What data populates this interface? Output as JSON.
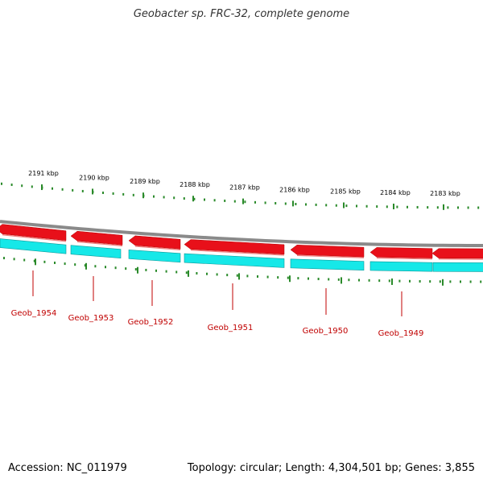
{
  "title": "Geobacter sp. FRC-32, complete genome",
  "footer": {
    "accession": "Accession: NC_011979",
    "summary": "Topology: circular; Length: 4,304,501 bp; Genes: 3,855"
  },
  "colors": {
    "backbone": "#8a8a8a",
    "forward_gene": "#e8101a",
    "reverse_gene": "#16e8e8",
    "ticks": "#2a8a2a",
    "gene_label": "#c00000"
  },
  "scale": {
    "unit": "kbp",
    "start_kbp": 2183,
    "end_kbp": 2191
  },
  "kbp_labels": [
    "2191 kbp",
    "2190 kbp",
    "2189 kbp",
    "2188 kbp",
    "2187 kbp",
    "2186 kbp",
    "2185 kbp",
    "2184 kbp",
    "2183 kbp"
  ],
  "genes": [
    {
      "label": "Geob_1954"
    },
    {
      "label": "Geob_1953"
    },
    {
      "label": "Geob_1952"
    },
    {
      "label": "Geob_1951"
    },
    {
      "label": "Geob_1950"
    },
    {
      "label": "Geob_1949"
    }
  ]
}
